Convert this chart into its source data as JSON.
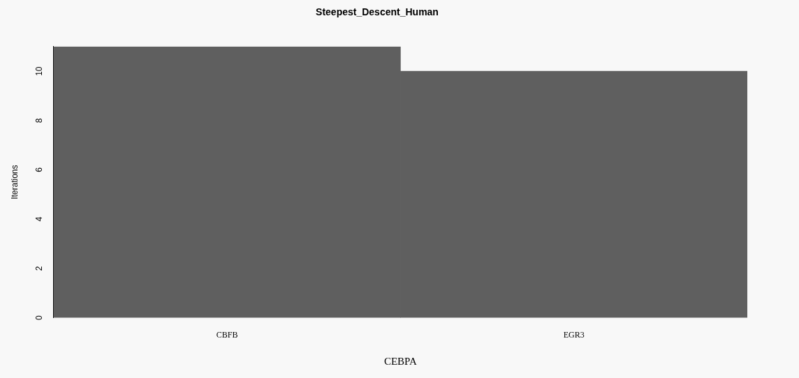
{
  "chart_data": {
    "type": "bar",
    "title": "Steepest_Descent_Human",
    "xlabel": "CEBPA",
    "ylabel": "Iterations",
    "categories": [
      "CBFB",
      "EGR3"
    ],
    "values": [
      11,
      10
    ],
    "color": "#5f5f5f",
    "ylim": [
      0,
      11
    ],
    "yticks": [
      0,
      2,
      4,
      6,
      8,
      10
    ]
  }
}
